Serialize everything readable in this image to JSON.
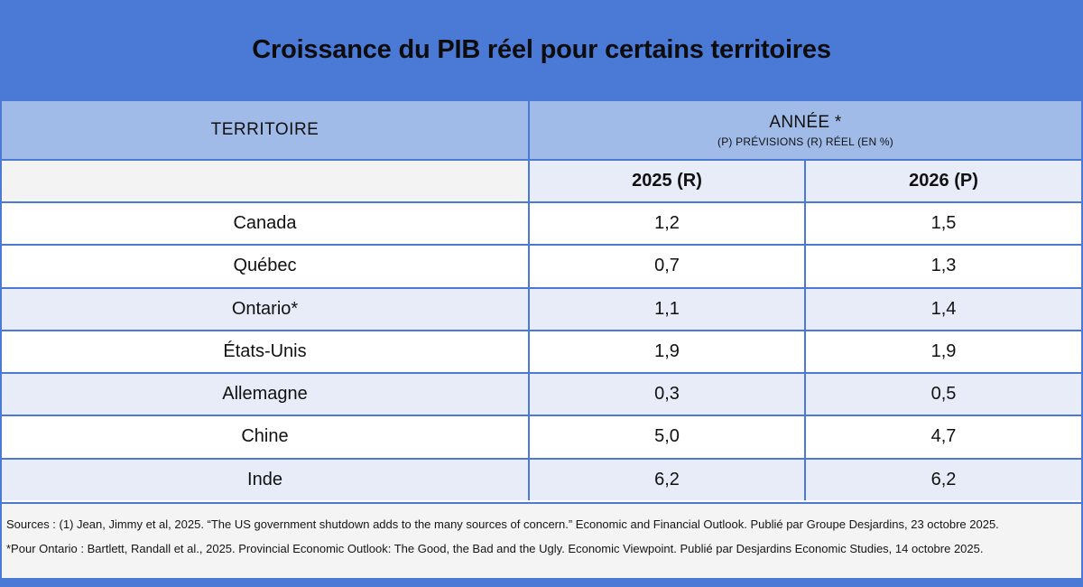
{
  "title": "Croissance du PIB réel pour certains territoires",
  "table": {
    "territory_header": "TERRITOIRE",
    "year_header": "ANNÉE *",
    "year_subheader": "(P) PRÉVISIONS (R) RÉEL (EN %)",
    "year_columns": [
      "2025 (R)",
      "2026 (P)"
    ],
    "rows": [
      {
        "territory": "Canada",
        "y2025": "1,2",
        "y2026": "1,5",
        "shaded": false
      },
      {
        "territory": "Québec",
        "y2025": "0,7",
        "y2026": "1,3",
        "shaded": false
      },
      {
        "territory": "Ontario*",
        "y2025": "1,1",
        "y2026": "1,4",
        "shaded": true
      },
      {
        "territory": "États-Unis",
        "y2025": "1,9",
        "y2026": "1,9",
        "shaded": false
      },
      {
        "territory": "Allemagne",
        "y2025": "0,3",
        "y2026": "0,5",
        "shaded": true
      },
      {
        "territory": "Chine",
        "y2025": "5,0",
        "y2026": "4,7",
        "shaded": false
      },
      {
        "territory": "Inde",
        "y2025": "6,2",
        "y2026": "6,2",
        "shaded": true
      }
    ]
  },
  "chart_data": {
    "type": "table",
    "title": "Croissance du PIB réel pour certains territoires",
    "unit": "%",
    "columns": [
      "TERRITOIRE",
      "2025 (R)",
      "2026 (P)"
    ],
    "series": [
      {
        "name": "2025 (R)",
        "values": [
          1.2,
          0.7,
          1.1,
          1.9,
          0.3,
          5.0,
          6.2
        ]
      },
      {
        "name": "2026 (P)",
        "values": [
          1.5,
          1.3,
          1.4,
          1.9,
          0.5,
          4.7,
          6.2
        ]
      }
    ],
    "categories": [
      "Canada",
      "Québec",
      "Ontario*",
      "États-Unis",
      "Allemagne",
      "Chine",
      "Inde"
    ],
    "legend_note": "(P) PRÉVISIONS (R) RÉEL (EN %)"
  },
  "footer": {
    "line1": "Sources : (1) Jean, Jimmy et al, 2025. “The US government shutdown adds to the many sources of concern.” Economic and Financial Outlook. Publié par Groupe Desjardins, 23 octobre 2025.",
    "line2": "*Pour Ontario : Bartlett, Randall et al., 2025. Provincial Economic Outlook: The Good, the Bad and the Ugly. Economic Viewpoint. Publié par Desjardins Economic Studies, 14 octobre 2025."
  },
  "colors": {
    "accent_blue": "#4b79d6",
    "header_periwinkle": "#a0bbe8",
    "row_shade": "#e7ecf8",
    "empty_cell_gray": "#f3f3f3",
    "footer_background": "#f4f4f4",
    "text": "#111111"
  }
}
